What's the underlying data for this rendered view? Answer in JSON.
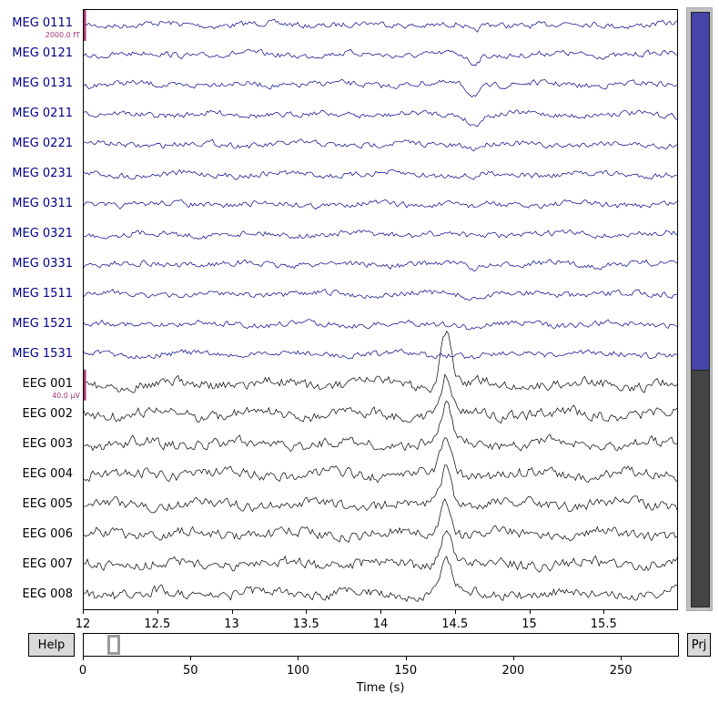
{
  "channels": [
    {
      "name": "MEG 0111",
      "type": "meg"
    },
    {
      "name": "MEG 0121",
      "type": "meg"
    },
    {
      "name": "MEG 0131",
      "type": "meg"
    },
    {
      "name": "MEG 0211",
      "type": "meg"
    },
    {
      "name": "MEG 0221",
      "type": "meg"
    },
    {
      "name": "MEG 0231",
      "type": "meg"
    },
    {
      "name": "MEG 0311",
      "type": "meg"
    },
    {
      "name": "MEG 0321",
      "type": "meg"
    },
    {
      "name": "MEG 0331",
      "type": "meg"
    },
    {
      "name": "MEG 1511",
      "type": "meg"
    },
    {
      "name": "MEG 1521",
      "type": "meg"
    },
    {
      "name": "MEG 1531",
      "type": "meg"
    },
    {
      "name": "EEG 001",
      "type": "eeg"
    },
    {
      "name": "EEG 002",
      "type": "eeg"
    },
    {
      "name": "EEG 003",
      "type": "eeg"
    },
    {
      "name": "EEG 004",
      "type": "eeg"
    },
    {
      "name": "EEG 005",
      "type": "eeg"
    },
    {
      "name": "EEG 006",
      "type": "eeg"
    },
    {
      "name": "EEG 007",
      "type": "eeg"
    },
    {
      "name": "EEG 008",
      "type": "eeg"
    }
  ],
  "scale_bars": {
    "meg": "2000.0 fT",
    "eeg": "40.0 µV"
  },
  "time_axis": {
    "min": 12,
    "max": 16,
    "ticks": [
      "12",
      "12.5",
      "13",
      "13.5",
      "14",
      "14.5",
      "15",
      "15.5"
    ],
    "tick_values": [
      12,
      12.5,
      13,
      13.5,
      14,
      14.5,
      15,
      15.5
    ]
  },
  "scroll_axis": {
    "min": 0,
    "max": 277,
    "ticks": [
      "0",
      "50",
      "100",
      "150",
      "200",
      "250"
    ],
    "tick_values": [
      0,
      50,
      100,
      150,
      200,
      250
    ],
    "label": "Time (s)",
    "view_start": 12,
    "view_end": 16
  },
  "buttons": {
    "help": "Help",
    "proj": "Prj"
  },
  "colors": {
    "meg": "#00008b",
    "eeg": "#000000",
    "scale_bar": "#aa3377",
    "vscroll_meg": "#4444aa",
    "vscroll_eeg": "#444444"
  }
}
